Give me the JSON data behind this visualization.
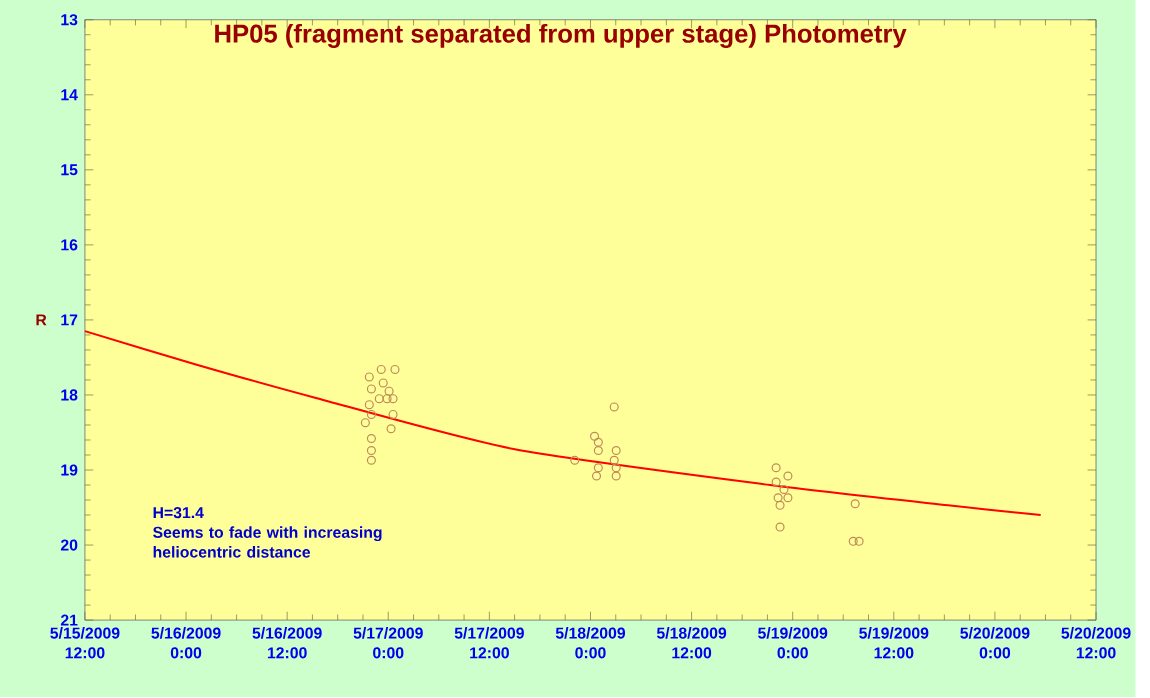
{
  "chart_data": {
    "type": "scatter",
    "title": "HP05 (fragment separated from upper stage) Photometry",
    "ylabel": "R",
    "annotations": [
      "H=31.4",
      "Seems to fade with increasing heliocentric distance"
    ],
    "xlim": [
      "2009-05-15T12:00",
      "2009-05-20T12:00"
    ],
    "xticks": [
      {
        "value": "2009-05-15T12:00",
        "label": "5/15/2009 12:00"
      },
      {
        "value": "2009-05-16T00:00",
        "label": "5/16/2009 0:00"
      },
      {
        "value": "2009-05-16T12:00",
        "label": "5/16/2009 12:00"
      },
      {
        "value": "2009-05-17T00:00",
        "label": "5/17/2009 0:00"
      },
      {
        "value": "2009-05-17T12:00",
        "label": "5/17/2009 12:00"
      },
      {
        "value": "2009-05-18T00:00",
        "label": "5/18/2009 0:00"
      },
      {
        "value": "2009-05-18T12:00",
        "label": "5/18/2009 12:00"
      },
      {
        "value": "2009-05-19T00:00",
        "label": "5/19/2009 0:00"
      },
      {
        "value": "2009-05-19T12:00",
        "label": "5/19/2009 12:00"
      },
      {
        "value": "2009-05-20T00:00",
        "label": "5/20/2009 0:00"
      },
      {
        "value": "2009-05-20T12:00",
        "label": "5/20/2009 12:00"
      }
    ],
    "ylim": [
      21,
      13
    ],
    "yticks": [
      13,
      14,
      15,
      16,
      17,
      18,
      19,
      20,
      21
    ],
    "grid": false,
    "marker": "circle",
    "series": [
      {
        "color": "#c08a5a",
        "x": [
          "2009-05-16T21:45",
          "2009-05-16T23:10",
          "2009-05-17T00:48",
          "2009-05-16T22:00",
          "2009-05-16T23:24",
          "2009-05-17T00:06",
          "2009-05-17T00:34",
          "2009-05-16T23:52",
          "2009-05-16T22:56",
          "2009-05-16T21:45",
          "2009-05-16T22:00",
          "2009-05-17T00:34",
          "2009-05-16T21:17",
          "2009-05-17T00:20",
          "2009-05-16T22:00",
          "2009-05-16T22:00",
          "2009-05-16T22:00",
          "2009-05-18T02:49",
          "2009-05-18T00:29",
          "2009-05-18T00:56",
          "2009-05-18T00:56",
          "2009-05-17T22:08",
          "2009-05-18T00:56",
          "2009-05-18T00:43",
          "2009-05-18T03:03",
          "2009-05-18T02:49",
          "2009-05-18T03:03",
          "2009-05-18T03:03",
          "2009-05-18T22:02",
          "2009-05-18T23:26",
          "2009-05-18T22:02",
          "2009-05-18T22:58",
          "2009-05-18T22:16",
          "2009-05-18T23:26",
          "2009-05-18T22:30",
          "2009-05-18T22:30",
          "2009-05-19T07:25",
          "2009-05-19T07:11",
          "2009-05-19T07:53"
        ],
        "values": [
          17.76,
          17.66,
          17.66,
          17.92,
          17.84,
          17.95,
          18.05,
          18.05,
          18.05,
          18.13,
          18.26,
          18.26,
          18.37,
          18.45,
          18.58,
          18.74,
          18.87,
          18.16,
          18.55,
          18.63,
          18.74,
          18.87,
          18.97,
          19.08,
          18.74,
          18.87,
          18.97,
          19.08,
          18.97,
          19.08,
          19.16,
          19.26,
          19.37,
          19.37,
          19.47,
          19.76,
          19.45,
          19.95,
          19.95
        ]
      },
      {
        "type": "line",
        "color": "#ff0000",
        "marker": "none",
        "x": [
          "2009-05-15T12:00",
          "2009-05-16T01:22",
          "2009-05-16T15:25",
          "2009-05-17T14:52",
          "2009-05-18T21:20",
          "2009-05-19T18:26",
          "2009-05-20T05:26"
        ],
        "values": [
          17.15,
          17.6,
          18.04,
          18.72,
          19.2,
          19.47,
          19.6
        ]
      }
    ]
  }
}
